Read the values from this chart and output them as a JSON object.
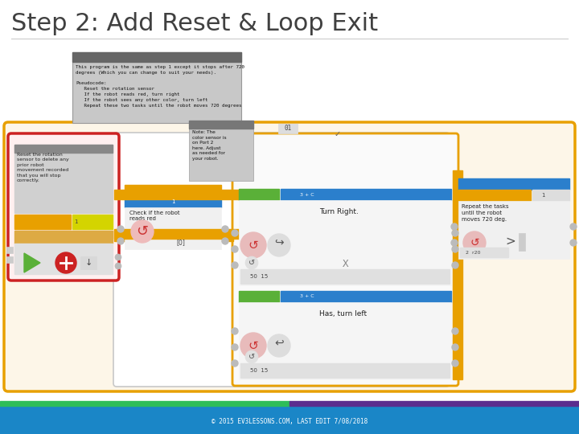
{
  "title": "Step 2: Add Reset & Loop Exit",
  "title_fontsize": 22,
  "title_color": "#404040",
  "bg_color": "#ffffff",
  "footer_text": "© 2015 EV3LESSONS.COM, LAST EDIT 7/08/2018",
  "footer_bg": "#1a86c7",
  "footer_text_color": "#ffffff",
  "footer_bar_left_color": "#2ebd59",
  "footer_bar_right_color": "#5b2d8e",
  "divider_color": "#cccccc",
  "loop_border_color": "#e8a000",
  "red_highlight_color": "#cc2222",
  "note_box_bg": "#c8c8c8",
  "note_box_text": "This program is the same as step 1 except it stops after 720\ndegrees (Which you can change to suit your needs).\n\nPseudocode:\n   Reset the rotation sensor\n   If the robot reads red, turn right\n   If the robot sees any other color, turn left\n   Repeat these two tasks until the robot moves 720 degrees",
  "reset_note": "Reset the rotation\nsensor to delete any\nprior robot\nmovement recorded\nthat you will stop\ncorrectly.",
  "color_note": "Note: The\ncolor sensor is\non Port 2\nhere. Adjust\nas needed for\nyour robot.",
  "turn_right_label": "Turn Right.",
  "has_left_label": "Has, turn left",
  "check_red_label": "Check if the robot\nreads red",
  "repeat_label": "Repeat the tasks\nuntil the robot\nmoves 720 deg.",
  "loop_label": "01",
  "loop_bg": "#fdf6e8",
  "inner_loop_bg": "#ffffff",
  "block_bg": "#e8e8e8",
  "green_color": "#5ab038",
  "blue_color": "#2b7fcc",
  "orange_color": "#e8a000",
  "yellow_color": "#d4d400",
  "gray_bar": "#888888",
  "connector_color": "#c0c0c0"
}
